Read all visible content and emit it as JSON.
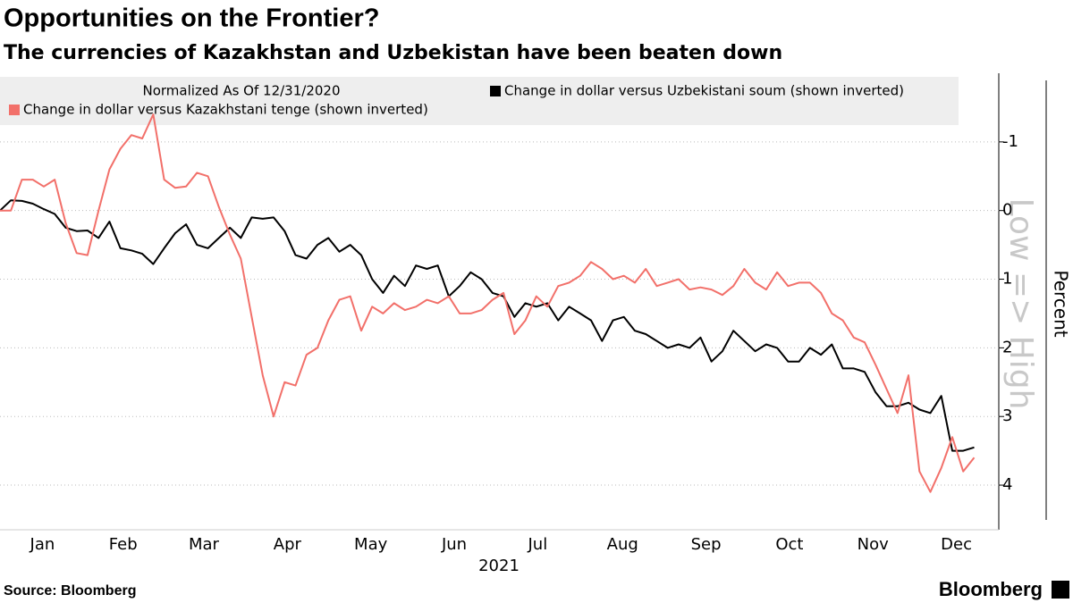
{
  "chart_data": {
    "type": "line",
    "title": "Opportunities on the Frontier?",
    "subtitle": "The currencies of Kazakhstan and Uzbekistan have been beaten down",
    "legend_note": "Normalized As Of 12/31/2020",
    "y_annotation": "Low => High",
    "y_label": "Percent",
    "x_label": "2021",
    "source": "Source: Bloomberg",
    "brand": "Bloomberg",
    "y_inverted": true,
    "grid": true,
    "xlim": [
      0,
      365
    ],
    "xticks": [
      {
        "value": 15.5,
        "label": "Jan"
      },
      {
        "value": 45,
        "label": "Feb"
      },
      {
        "value": 74.5,
        "label": "Mar"
      },
      {
        "value": 105,
        "label": "Apr"
      },
      {
        "value": 135.5,
        "label": "May"
      },
      {
        "value": 166,
        "label": "Jun"
      },
      {
        "value": 196.5,
        "label": "Jul"
      },
      {
        "value": 227.5,
        "label": "Aug"
      },
      {
        "value": 258,
        "label": "Sep"
      },
      {
        "value": 288.5,
        "label": "Oct"
      },
      {
        "value": 319,
        "label": "Nov"
      },
      {
        "value": 349.5,
        "label": "Dec"
      }
    ],
    "ylim": [
      -2,
      4.65
    ],
    "yticks": [
      -1,
      0,
      1,
      2,
      3,
      4
    ],
    "x": [
      0,
      4,
      8,
      12,
      16,
      20,
      24,
      28,
      32,
      36,
      40,
      44,
      48,
      52,
      56,
      60,
      64,
      68,
      72,
      76,
      80,
      84,
      88,
      92,
      96,
      100,
      104,
      108,
      112,
      116,
      120,
      124,
      128,
      132,
      136,
      140,
      144,
      148,
      152,
      156,
      160,
      164,
      168,
      172,
      176,
      180,
      184,
      188,
      192,
      196,
      200,
      204,
      208,
      212,
      216,
      220,
      224,
      228,
      232,
      236,
      240,
      244,
      248,
      252,
      256,
      260,
      264,
      268,
      272,
      276,
      280,
      284,
      288,
      292,
      296,
      300,
      304,
      308,
      312,
      316,
      320,
      324,
      328,
      332,
      336,
      340,
      344,
      348,
      352,
      356
    ],
    "series": [
      {
        "name": "Change in dollar versus Uzbekistani soum (shown inverted)",
        "color": "#000000",
        "values": [
          0,
          -0.15,
          -0.14,
          -0.1,
          -0.02,
          0.05,
          0.25,
          0.3,
          0.29,
          0.4,
          0.16,
          0.55,
          0.58,
          0.63,
          0.78,
          0.55,
          0.33,
          0.2,
          0.5,
          0.55,
          0.4,
          0.25,
          0.4,
          0.1,
          0.12,
          0.1,
          0.3,
          0.65,
          0.7,
          0.5,
          0.4,
          0.6,
          0.5,
          0.65,
          1.0,
          1.2,
          0.95,
          1.1,
          0.8,
          0.85,
          0.8,
          1.25,
          1.1,
          0.9,
          1.0,
          1.2,
          1.25,
          1.55,
          1.35,
          1.4,
          1.35,
          1.6,
          1.4,
          1.5,
          1.6,
          1.9,
          1.6,
          1.55,
          1.75,
          1.8,
          1.9,
          2.0,
          1.95,
          2.0,
          1.85,
          2.2,
          2.05,
          1.75,
          1.9,
          2.05,
          1.95,
          2.0,
          2.2,
          2.2,
          2.0,
          2.1,
          1.95,
          2.3,
          2.3,
          2.35,
          2.65,
          2.85,
          2.85,
          2.8,
          2.9,
          2.95,
          2.7,
          3.5,
          3.5,
          3.45
        ]
      },
      {
        "name": "Change in dollar versus Kazakhstani tenge (shown inverted)",
        "color": "#f2706a",
        "values": [
          0,
          0.0,
          -0.45,
          -0.45,
          -0.35,
          -0.45,
          0.18,
          0.62,
          0.65,
          0.0,
          -0.6,
          -0.9,
          -1.1,
          -1.05,
          -1.4,
          -0.45,
          -0.33,
          -0.35,
          -0.55,
          -0.5,
          -0.05,
          0.35,
          0.7,
          1.55,
          2.4,
          3.0,
          2.5,
          2.55,
          2.1,
          2.0,
          1.6,
          1.3,
          1.25,
          1.75,
          1.4,
          1.5,
          1.35,
          1.45,
          1.4,
          1.3,
          1.35,
          1.25,
          1.5,
          1.5,
          1.45,
          1.3,
          1.2,
          1.8,
          1.6,
          1.25,
          1.4,
          1.1,
          1.05,
          0.95,
          0.75,
          0.85,
          1.0,
          0.95,
          1.05,
          0.85,
          1.1,
          1.05,
          1.0,
          1.15,
          1.12,
          1.15,
          1.23,
          1.1,
          0.85,
          1.05,
          1.15,
          0.9,
          1.1,
          1.05,
          1.05,
          1.2,
          1.5,
          1.6,
          1.85,
          1.92,
          2.25,
          2.6,
          2.95,
          2.4,
          3.8,
          4.1,
          3.75,
          3.3,
          3.8,
          3.6
        ]
      }
    ]
  }
}
